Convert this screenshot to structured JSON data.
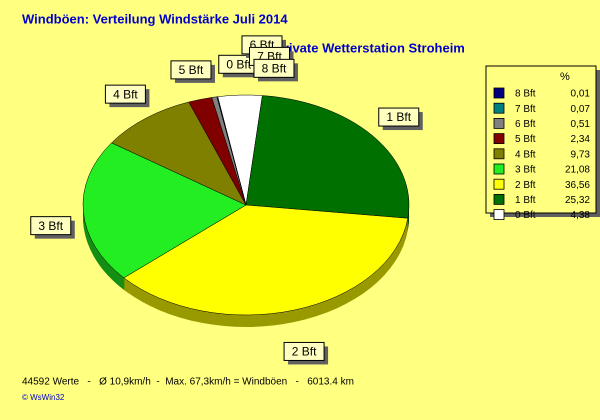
{
  "chart_data": {
    "type": "pie",
    "title": "Windböen: Verteilung Windstärke  Juli 2014",
    "subtitle": "Private Wetterstation Stroheim",
    "legend_header": "%",
    "categories": [
      "8 Bft",
      "7 Bft",
      "6 Bft",
      "5 Bft",
      "4 Bft",
      "3 Bft",
      "2 Bft",
      "1 Bft",
      "0 Bft"
    ],
    "values": [
      0.01,
      0.07,
      0.51,
      2.34,
      9.73,
      21.08,
      36.56,
      25.32,
      4.38
    ],
    "value_labels": [
      "0,01",
      "0,07",
      "0,51",
      "2,34",
      "9,73",
      "21,08",
      "36,56",
      "25,32",
      "4,38"
    ],
    "colors": [
      "#000080",
      "#008080",
      "#808080",
      "#800000",
      "#808000",
      "#22ee22",
      "#ffff00",
      "#007000",
      "#ffffff"
    ],
    "footer": "44592 Werte   -   Ø 10,9km/h  -  Max. 67,3km/h = Windböen   -   6013.4 km",
    "credit": "© WsWin32"
  }
}
